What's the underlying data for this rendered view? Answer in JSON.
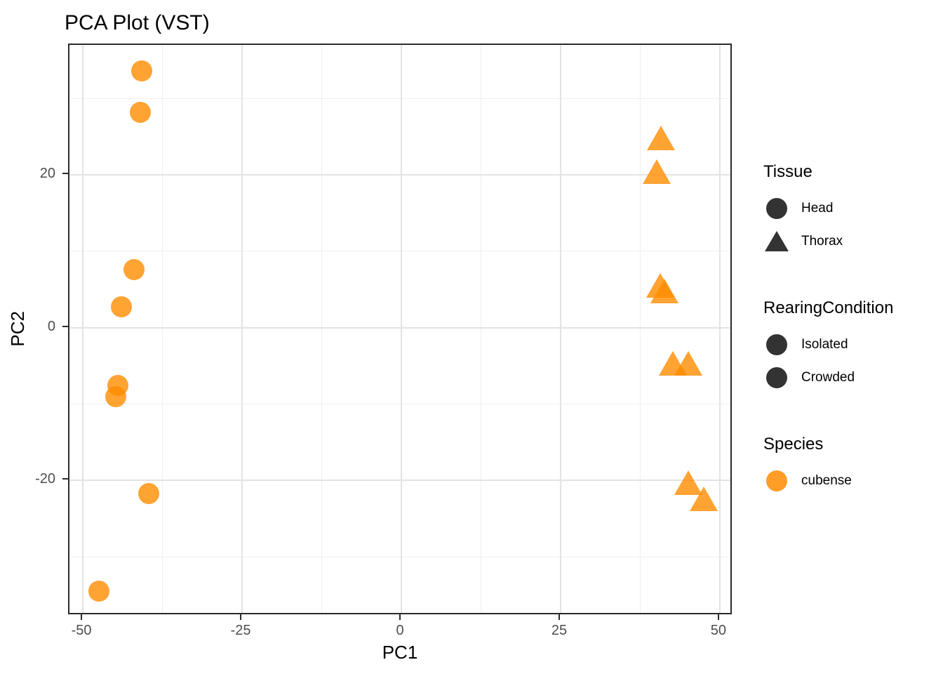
{
  "title": "PCA Plot (VST)",
  "chart_data": {
    "type": "scatter",
    "title": "PCA Plot (VST)",
    "xlabel": "PC1",
    "ylabel": "PC2",
    "xlim": [
      -52.1,
      52.1
    ],
    "ylim": [
      -37.7,
      37.0
    ],
    "grid": true,
    "legend_position": "right",
    "x_major_ticks": [
      -50,
      -25,
      0,
      25,
      50
    ],
    "x_tick_labels": [
      "-50",
      "-25",
      "0",
      "25",
      "50"
    ],
    "y_major_ticks": [
      20,
      0,
      -20
    ],
    "y_tick_labels": [
      "20",
      "0",
      "-20"
    ],
    "x_minor_ticks": [
      -37.5,
      -12.5,
      12.5,
      37.5
    ],
    "y_minor_ticks": [
      30,
      10,
      -10,
      -30
    ],
    "point_color": "rgba(255,140,0,0.8)",
    "series": [
      {
        "name": "Head",
        "shape": "circle",
        "species": "cubense",
        "points": [
          [
            -40.8,
            33.6
          ],
          [
            -41.0,
            28.2
          ],
          [
            -42.0,
            7.6
          ],
          [
            -43.9,
            2.7
          ],
          [
            -44.5,
            -7.6
          ],
          [
            -44.8,
            -9.0
          ],
          [
            -39.6,
            -21.7
          ],
          [
            -47.5,
            -34.5
          ]
        ]
      },
      {
        "name": "Thorax",
        "shape": "triangle",
        "species": "cubense",
        "points": [
          [
            40.8,
            24.9
          ],
          [
            40.1,
            20.5
          ],
          [
            40.6,
            5.6
          ],
          [
            41.3,
            4.8
          ],
          [
            42.6,
            -4.6
          ],
          [
            45.0,
            -4.6
          ],
          [
            45.0,
            -20.2
          ],
          [
            47.5,
            -22.4
          ]
        ]
      }
    ]
  },
  "legend": {
    "groups": [
      {
        "title": "Tissue",
        "key_color": "#333333",
        "items": [
          {
            "label": "Head",
            "shape": "circle"
          },
          {
            "label": "Thorax",
            "shape": "triangle"
          }
        ]
      },
      {
        "title": "RearingCondition",
        "key_color": "#333333",
        "items": [
          {
            "label": "Isolated",
            "shape": "circle"
          },
          {
            "label": "Crowded",
            "shape": "circle"
          }
        ]
      },
      {
        "title": "Species",
        "key_color": "rgba(255,140,0,0.85)",
        "items": [
          {
            "label": "cubense",
            "shape": "circle"
          }
        ]
      }
    ]
  },
  "colors": {
    "point_orange": "#FF8C00",
    "point_alpha": "0.8",
    "legend_dark_key": "#333333",
    "panel_border": "#2b2b2b",
    "grid_major": "#e3e3e3",
    "grid_minor": "#efefef",
    "tick_label": "#4d4d4d"
  }
}
